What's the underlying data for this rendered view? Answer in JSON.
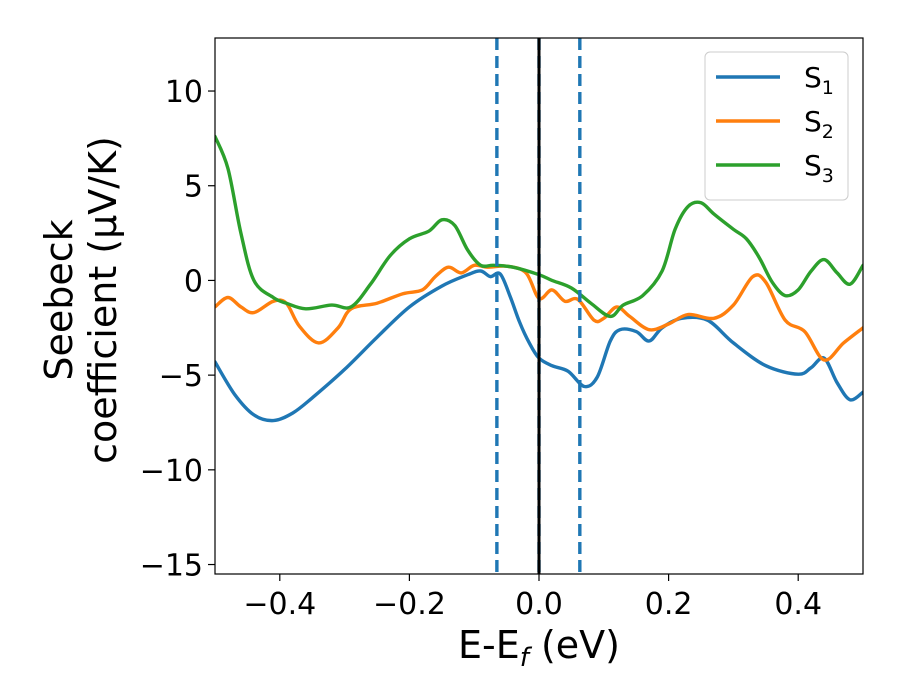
{
  "chart_data": {
    "type": "line",
    "xlabel": "E-E",
    "xlabel_sub": "f",
    "xlabel_unit": " (eV)",
    "ylabel_line1": "Seebeck",
    "ylabel_line2": "coefficient  (μV/K)",
    "xlim": [
      -0.5,
      0.5
    ],
    "ylim": [
      -15.5,
      12.8
    ],
    "x_ticks": [
      -0.4,
      -0.2,
      0.0,
      0.2,
      0.4
    ],
    "x_tick_labels": [
      "−0.4",
      "−0.2",
      "0.0",
      "0.2",
      "0.4"
    ],
    "y_ticks": [
      10,
      5,
      0,
      -5,
      -10,
      -15
    ],
    "y_tick_labels": [
      "10",
      "5",
      "0",
      "−5",
      "−10",
      "−15"
    ],
    "grid": false,
    "legend_position": "top-right",
    "vlines": [
      {
        "x": -0.065,
        "style": "dashed",
        "color": "#1f77b4"
      },
      {
        "x": 0.063,
        "style": "dashed",
        "color": "#1f77b4"
      },
      {
        "x": 0.0,
        "style": "dashed",
        "color": "#1f77b4"
      },
      {
        "x": 0.0,
        "style": "solid",
        "color": "#000000"
      }
    ],
    "series": [
      {
        "name": "S",
        "name_sub": "1",
        "color": "#1f77b4",
        "points": [
          [
            -0.5,
            -4.3
          ],
          [
            -0.47,
            -6.0
          ],
          [
            -0.44,
            -7.1
          ],
          [
            -0.41,
            -7.4
          ],
          [
            -0.38,
            -7.0
          ],
          [
            -0.35,
            -6.2
          ],
          [
            -0.3,
            -4.7
          ],
          [
            -0.25,
            -3.0
          ],
          [
            -0.2,
            -1.4
          ],
          [
            -0.15,
            -0.3
          ],
          [
            -0.11,
            0.3
          ],
          [
            -0.09,
            0.5
          ],
          [
            -0.075,
            0.2
          ],
          [
            -0.06,
            0.35
          ],
          [
            -0.045,
            -0.8
          ],
          [
            -0.03,
            -2.2
          ],
          [
            -0.015,
            -3.3
          ],
          [
            0.0,
            -4.1
          ],
          [
            0.02,
            -4.5
          ],
          [
            0.045,
            -4.8
          ],
          [
            0.07,
            -5.6
          ],
          [
            0.09,
            -5.1
          ],
          [
            0.11,
            -3.2
          ],
          [
            0.125,
            -2.6
          ],
          [
            0.15,
            -2.7
          ],
          [
            0.17,
            -3.2
          ],
          [
            0.19,
            -2.5
          ],
          [
            0.22,
            -2.0
          ],
          [
            0.26,
            -2.1
          ],
          [
            0.3,
            -3.3
          ],
          [
            0.35,
            -4.5
          ],
          [
            0.4,
            -4.95
          ],
          [
            0.42,
            -4.6
          ],
          [
            0.44,
            -4.1
          ],
          [
            0.46,
            -5.4
          ],
          [
            0.48,
            -6.3
          ],
          [
            0.5,
            -5.9
          ]
        ]
      },
      {
        "name": "S",
        "name_sub": "2",
        "color": "#ff7f0e",
        "points": [
          [
            -0.5,
            -1.4
          ],
          [
            -0.48,
            -0.9
          ],
          [
            -0.46,
            -1.4
          ],
          [
            -0.44,
            -1.7
          ],
          [
            -0.41,
            -1.1
          ],
          [
            -0.39,
            -1.2
          ],
          [
            -0.37,
            -2.4
          ],
          [
            -0.34,
            -3.3
          ],
          [
            -0.31,
            -2.5
          ],
          [
            -0.29,
            -1.5
          ],
          [
            -0.25,
            -1.2
          ],
          [
            -0.21,
            -0.7
          ],
          [
            -0.18,
            -0.5
          ],
          [
            -0.16,
            0.2
          ],
          [
            -0.14,
            0.7
          ],
          [
            -0.12,
            0.4
          ],
          [
            -0.1,
            0.8
          ],
          [
            -0.08,
            0.7
          ],
          [
            -0.05,
            0.75
          ],
          [
            -0.02,
            0.4
          ],
          [
            0.0,
            -0.95
          ],
          [
            0.02,
            -0.5
          ],
          [
            0.04,
            -1.1
          ],
          [
            0.06,
            -1.0
          ],
          [
            0.085,
            -2.1
          ],
          [
            0.1,
            -2.0
          ],
          [
            0.12,
            -1.4
          ],
          [
            0.14,
            -1.9
          ],
          [
            0.17,
            -2.6
          ],
          [
            0.2,
            -2.3
          ],
          [
            0.23,
            -1.8
          ],
          [
            0.27,
            -2.0
          ],
          [
            0.3,
            -1.3
          ],
          [
            0.33,
            0.2
          ],
          [
            0.35,
            -0.1
          ],
          [
            0.38,
            -2.1
          ],
          [
            0.41,
            -2.7
          ],
          [
            0.44,
            -4.2
          ],
          [
            0.47,
            -3.3
          ],
          [
            0.5,
            -2.5
          ]
        ]
      },
      {
        "name": "S",
        "name_sub": "3",
        "color": "#2ca02c",
        "points": [
          [
            -0.5,
            7.6
          ],
          [
            -0.48,
            5.9
          ],
          [
            -0.46,
            2.5
          ],
          [
            -0.44,
            0.0
          ],
          [
            -0.41,
            -0.9
          ],
          [
            -0.39,
            -1.2
          ],
          [
            -0.36,
            -1.5
          ],
          [
            -0.32,
            -1.3
          ],
          [
            -0.29,
            -1.4
          ],
          [
            -0.26,
            -0.2
          ],
          [
            -0.23,
            1.3
          ],
          [
            -0.2,
            2.2
          ],
          [
            -0.17,
            2.6
          ],
          [
            -0.15,
            3.2
          ],
          [
            -0.13,
            2.9
          ],
          [
            -0.11,
            1.6
          ],
          [
            -0.09,
            0.8
          ],
          [
            -0.07,
            0.8
          ],
          [
            -0.04,
            0.7
          ],
          [
            0.0,
            0.3
          ],
          [
            0.02,
            0.0
          ],
          [
            0.05,
            -0.4
          ],
          [
            0.08,
            -1.2
          ],
          [
            0.11,
            -1.9
          ],
          [
            0.13,
            -1.3
          ],
          [
            0.16,
            -0.8
          ],
          [
            0.19,
            0.5
          ],
          [
            0.21,
            2.7
          ],
          [
            0.23,
            3.9
          ],
          [
            0.25,
            4.1
          ],
          [
            0.27,
            3.5
          ],
          [
            0.3,
            2.7
          ],
          [
            0.32,
            2.2
          ],
          [
            0.34,
            1.2
          ],
          [
            0.36,
            -0.1
          ],
          [
            0.38,
            -0.8
          ],
          [
            0.4,
            -0.5
          ],
          [
            0.42,
            0.5
          ],
          [
            0.44,
            1.1
          ],
          [
            0.46,
            0.4
          ],
          [
            0.48,
            -0.2
          ],
          [
            0.5,
            0.8
          ]
        ]
      }
    ]
  }
}
